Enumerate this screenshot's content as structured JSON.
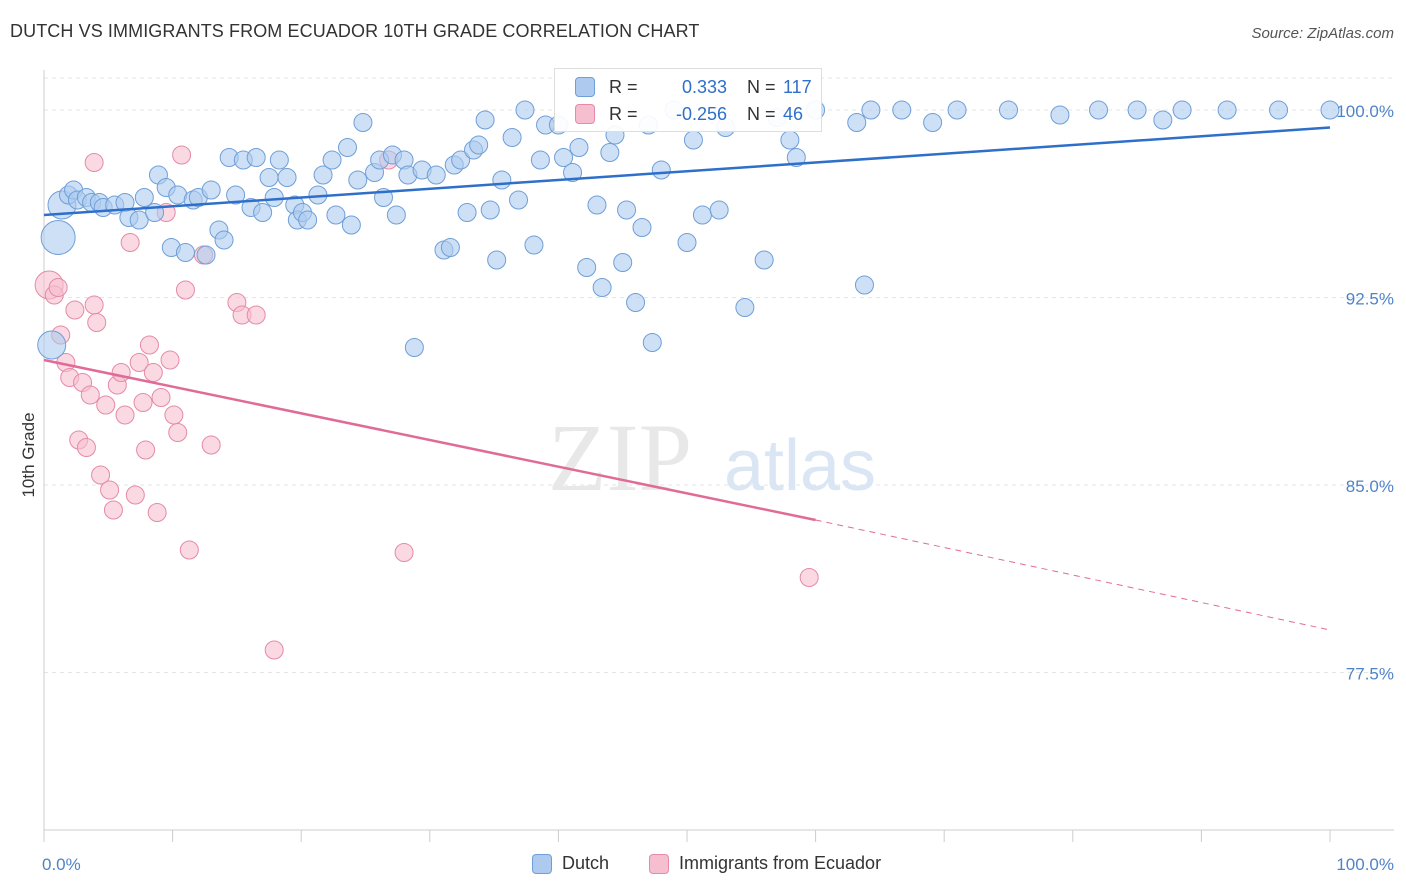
{
  "title": "DUTCH VS IMMIGRANTS FROM ECUADOR 10TH GRADE CORRELATION CHART",
  "source": "Source: ZipAtlas.com",
  "watermark": {
    "zip": "ZIP",
    "atlas": "atlas"
  },
  "colors": {
    "dutch_fill": "#aecbef",
    "dutch_stroke": "#6f9fd8",
    "dutch_line": "#2e6fca",
    "ecuador_fill": "#f6bfd0",
    "ecuador_stroke": "#e58aa8",
    "ecuador_line": "#e06b96",
    "axis_text": "#4f83c9",
    "grid": "#e5e5e5"
  },
  "stats": {
    "r_label": "R =",
    "n_label": "N =",
    "dutch": {
      "r": "0.333",
      "n": "117"
    },
    "ecuador": {
      "r": "-0.256",
      "n": "46"
    }
  },
  "legend": {
    "dutch": "Dutch",
    "ecuador": "Immigrants from Ecuador"
  },
  "chart_data": {
    "type": "scatter",
    "title": "DUTCH VS IMMIGRANTS FROM ECUADOR 10TH GRADE CORRELATION CHART",
    "xlabel": "",
    "ylabel": "10th Grade",
    "xlim": [
      0,
      100
    ],
    "ylim": [
      71.2,
      101.6
    ],
    "x_ticks": [
      0,
      10,
      20,
      30,
      40,
      50,
      60,
      70,
      80,
      90,
      100
    ],
    "x_tick_labels": {
      "0": "0.0%",
      "100": "100.0%"
    },
    "y_ticks": [
      77.5,
      85.0,
      92.5,
      100.0
    ],
    "y_tick_labels": [
      "77.5%",
      "85.0%",
      "92.5%",
      "100.0%"
    ],
    "grid": true,
    "legend_position": "bottom",
    "series": [
      {
        "name": "Dutch",
        "trend": {
          "x": [
            0,
            100
          ],
          "y": [
            95.8,
            99.3
          ]
        },
        "points": [
          [
            1.4,
            96.2,
            3
          ],
          [
            1.1,
            94.9,
            4
          ],
          [
            1.9,
            96.6,
            1
          ],
          [
            2.3,
            96.8,
            1
          ],
          [
            2.6,
            96.4,
            1
          ],
          [
            3.3,
            96.5,
            1
          ],
          [
            3.7,
            96.3,
            1
          ],
          [
            4.3,
            96.3,
            1
          ],
          [
            4.6,
            96.1,
            1
          ],
          [
            5.5,
            96.2,
            1
          ],
          [
            6.3,
            96.3,
            1
          ],
          [
            6.6,
            95.7,
            1
          ],
          [
            7.4,
            95.6,
            1
          ],
          [
            7.8,
            96.5,
            1
          ],
          [
            8.6,
            95.9,
            1
          ],
          [
            8.9,
            97.4,
            1
          ],
          [
            9.5,
            96.9,
            1
          ],
          [
            9.9,
            94.5,
            1
          ],
          [
            10.4,
            96.6,
            1
          ],
          [
            11.0,
            94.3,
            1
          ],
          [
            11.6,
            96.4,
            1
          ],
          [
            12.0,
            96.5,
            1
          ],
          [
            12.6,
            94.2,
            1
          ],
          [
            13.0,
            96.8,
            1
          ],
          [
            13.6,
            95.2,
            1
          ],
          [
            14.0,
            94.8,
            1
          ],
          [
            14.4,
            98.1,
            1
          ],
          [
            14.9,
            96.6,
            1
          ],
          [
            15.5,
            98.0,
            1
          ],
          [
            16.1,
            96.1,
            1
          ],
          [
            16.5,
            98.1,
            1
          ],
          [
            17.0,
            95.9,
            1
          ],
          [
            17.5,
            97.3,
            1
          ],
          [
            17.9,
            96.5,
            1
          ],
          [
            18.3,
            98.0,
            1
          ],
          [
            18.9,
            97.3,
            1
          ],
          [
            19.5,
            96.2,
            1
          ],
          [
            19.7,
            95.6,
            1
          ],
          [
            20.1,
            95.9,
            1
          ],
          [
            20.5,
            95.6,
            1
          ],
          [
            21.3,
            96.6,
            1
          ],
          [
            21.7,
            97.4,
            1
          ],
          [
            22.4,
            98.0,
            1
          ],
          [
            22.7,
            95.8,
            1
          ],
          [
            23.6,
            98.5,
            1
          ],
          [
            23.9,
            95.4,
            1
          ],
          [
            24.4,
            97.2,
            1
          ],
          [
            24.8,
            99.5,
            1
          ],
          [
            25.7,
            97.5,
            1
          ],
          [
            26.1,
            98.0,
            1
          ],
          [
            26.4,
            96.5,
            1
          ],
          [
            27.1,
            98.2,
            1
          ],
          [
            27.4,
            95.8,
            1
          ],
          [
            28.0,
            98.0,
            1
          ],
          [
            28.3,
            97.4,
            1
          ],
          [
            28.8,
            90.5,
            1
          ],
          [
            29.4,
            97.6,
            1
          ],
          [
            30.5,
            97.4,
            1
          ],
          [
            31.1,
            94.4,
            1
          ],
          [
            31.6,
            94.5,
            1
          ],
          [
            31.9,
            97.8,
            1
          ],
          [
            32.4,
            98.0,
            1
          ],
          [
            32.9,
            95.9,
            1
          ],
          [
            33.4,
            98.4,
            1
          ],
          [
            33.8,
            98.6,
            1
          ],
          [
            34.3,
            99.6,
            1
          ],
          [
            34.7,
            96.0,
            1
          ],
          [
            35.2,
            94.0,
            1
          ],
          [
            35.6,
            97.2,
            1
          ],
          [
            36.4,
            98.9,
            1
          ],
          [
            36.9,
            96.4,
            1
          ],
          [
            37.4,
            100.0,
            1
          ],
          [
            38.1,
            94.6,
            1
          ],
          [
            38.6,
            98.0,
            1
          ],
          [
            39.0,
            99.4,
            1
          ],
          [
            40.0,
            99.4,
            1
          ],
          [
            40.4,
            98.1,
            1
          ],
          [
            41.1,
            97.5,
            1
          ],
          [
            41.6,
            98.5,
            1
          ],
          [
            42.2,
            93.7,
            1
          ],
          [
            43.0,
            96.2,
            1
          ],
          [
            43.4,
            92.9,
            1
          ],
          [
            44.0,
            98.3,
            1
          ],
          [
            44.4,
            99.0,
            1
          ],
          [
            45.0,
            93.9,
            1
          ],
          [
            45.3,
            96.0,
            1
          ],
          [
            46.0,
            92.3,
            1
          ],
          [
            46.5,
            95.3,
            1
          ],
          [
            47.0,
            99.4,
            1
          ],
          [
            47.3,
            90.7,
            1
          ],
          [
            48.0,
            97.6,
            1
          ],
          [
            49.0,
            100.0,
            1
          ],
          [
            50.0,
            94.7,
            1
          ],
          [
            50.5,
            98.8,
            1
          ],
          [
            51.2,
            95.8,
            1
          ],
          [
            52.5,
            96.0,
            1
          ],
          [
            53.0,
            99.3,
            1
          ],
          [
            54.5,
            92.1,
            1
          ],
          [
            56.0,
            94.0,
            1
          ],
          [
            57.0,
            99.7,
            1
          ],
          [
            58.0,
            98.8,
            1
          ],
          [
            58.5,
            98.1,
            1
          ],
          [
            60.0,
            100.0,
            1
          ],
          [
            63.2,
            99.5,
            1
          ],
          [
            63.8,
            93.0,
            1
          ],
          [
            64.3,
            100.0,
            1
          ],
          [
            66.7,
            100.0,
            1
          ],
          [
            69.1,
            99.5,
            1
          ],
          [
            71.0,
            100.0,
            1
          ],
          [
            75.0,
            100.0,
            1
          ],
          [
            79.0,
            99.8,
            1
          ],
          [
            82.0,
            100.0,
            1
          ],
          [
            85.0,
            100.0,
            1
          ],
          [
            87.0,
            99.6,
            1
          ],
          [
            88.5,
            100.0,
            1
          ],
          [
            92.0,
            100.0,
            1
          ],
          [
            96.0,
            100.0,
            1
          ],
          [
            100.0,
            100.0,
            1
          ],
          [
            0.6,
            90.6,
            3
          ]
        ]
      },
      {
        "name": "Immigrants from Ecuador",
        "trend": {
          "x": [
            0,
            60
          ],
          "y": [
            90.0,
            83.6
          ]
        },
        "trend_dashed": {
          "x": [
            60,
            100
          ],
          "y": [
            83.6,
            79.2
          ]
        },
        "points": [
          [
            0.4,
            93.0,
            3
          ],
          [
            0.8,
            92.6,
            1
          ],
          [
            1.1,
            92.9,
            1
          ],
          [
            1.3,
            91.0,
            1
          ],
          [
            1.7,
            89.9,
            1
          ],
          [
            2.0,
            89.3,
            1
          ],
          [
            2.4,
            92.0,
            1
          ],
          [
            2.7,
            86.8,
            1
          ],
          [
            3.0,
            89.1,
            1
          ],
          [
            3.3,
            86.5,
            1
          ],
          [
            3.6,
            88.6,
            1
          ],
          [
            3.9,
            92.2,
            1
          ],
          [
            4.1,
            91.5,
            1
          ],
          [
            4.4,
            85.4,
            1
          ],
          [
            4.8,
            88.2,
            1
          ],
          [
            5.1,
            84.8,
            1
          ],
          [
            5.4,
            84.0,
            1
          ],
          [
            5.7,
            89.0,
            1
          ],
          [
            6.0,
            89.5,
            1
          ],
          [
            6.3,
            87.8,
            1
          ],
          [
            6.7,
            94.7,
            1
          ],
          [
            7.1,
            84.6,
            1
          ],
          [
            7.4,
            89.9,
            1
          ],
          [
            7.7,
            88.3,
            1
          ],
          [
            7.9,
            86.4,
            1
          ],
          [
            8.2,
            90.6,
            1
          ],
          [
            8.5,
            89.5,
            1
          ],
          [
            8.8,
            83.9,
            1
          ],
          [
            9.1,
            88.5,
            1
          ],
          [
            9.5,
            95.9,
            1
          ],
          [
            9.8,
            90.0,
            1
          ],
          [
            10.1,
            87.8,
            1
          ],
          [
            10.4,
            87.1,
            1
          ],
          [
            10.7,
            98.2,
            1
          ],
          [
            11.0,
            92.8,
            1
          ],
          [
            11.3,
            82.4,
            1
          ],
          [
            12.4,
            94.2,
            1
          ],
          [
            13.0,
            86.6,
            1
          ],
          [
            15.0,
            92.3,
            1
          ],
          [
            15.4,
            91.8,
            1
          ],
          [
            16.5,
            91.8,
            1
          ],
          [
            17.9,
            78.4,
            1
          ],
          [
            28.0,
            82.3,
            1
          ],
          [
            59.5,
            81.3,
            1
          ],
          [
            26.8,
            98.0,
            1
          ],
          [
            3.9,
            97.9,
            1
          ]
        ]
      }
    ]
  }
}
